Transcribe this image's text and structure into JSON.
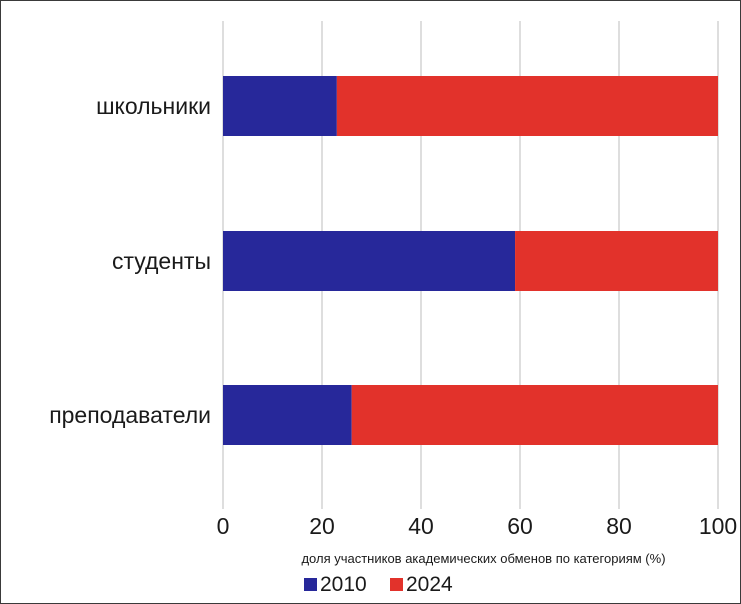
{
  "chart_data": {
    "type": "bar",
    "orientation": "horizontal",
    "stacked": true,
    "categories": [
      "школьники",
      "студенты",
      "преподаватели"
    ],
    "series": [
      {
        "name": "2010",
        "values": [
          23,
          59,
          26
        ],
        "color": "#27289a"
      },
      {
        "name": "2024",
        "values": [
          77,
          41,
          74
        ],
        "color": "#e2322b"
      }
    ],
    "xlabel": "доля участников академических обменов по категориям (%)",
    "ylabel": "",
    "xlim": [
      0,
      100
    ],
    "x_ticks": [
      "0",
      "20",
      "40",
      "60",
      "80",
      "100"
    ],
    "grid": "vertical",
    "legend_position": "bottom"
  }
}
